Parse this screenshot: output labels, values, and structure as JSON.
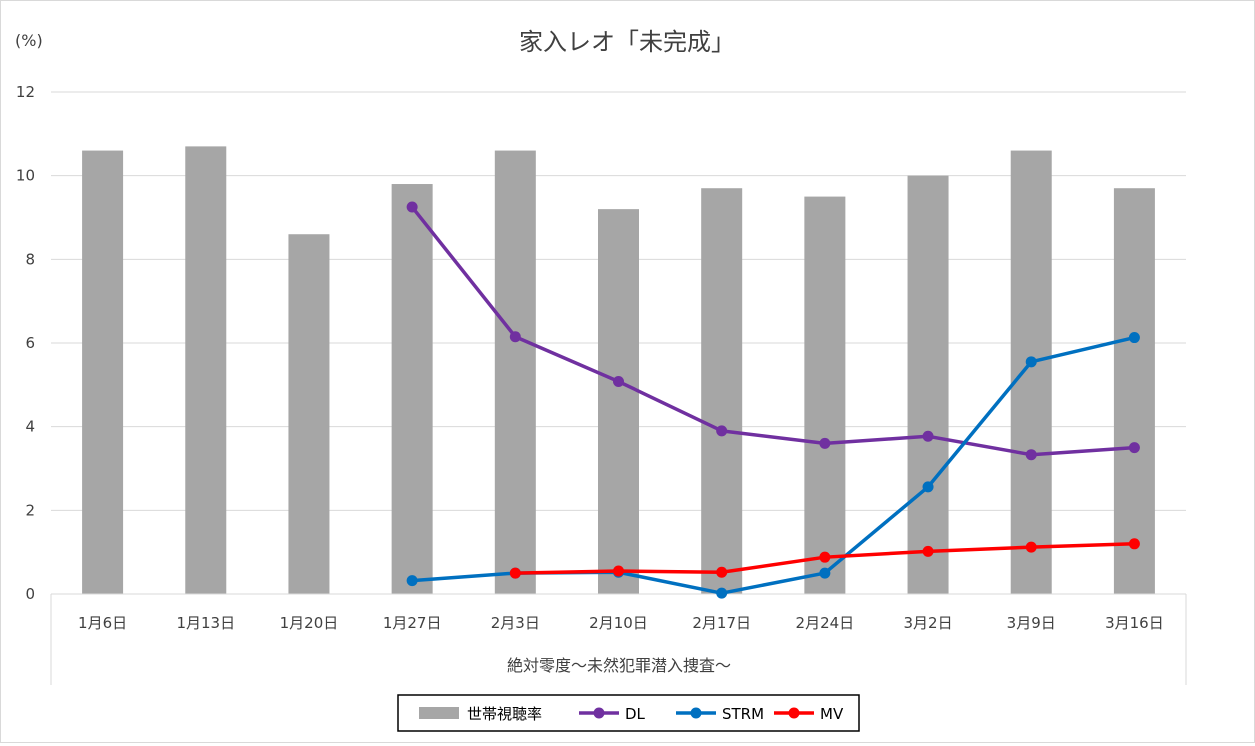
{
  "chart_data": {
    "type": "bar+line",
    "title": "家入レオ「未完成」",
    "y_unit_label": "(%)",
    "group_label": "絶対零度〜未然犯罪潜入捜査〜",
    "categories": [
      "1月6日",
      "1月13日",
      "1月20日",
      "1月27日",
      "2月3日",
      "2月10日",
      "2月17日",
      "2月24日",
      "3月2日",
      "3月9日",
      "3月16日"
    ],
    "ylim": [
      0,
      12
    ],
    "yticks": [
      0,
      2,
      4,
      6,
      8,
      10,
      12
    ],
    "grid": true,
    "legend_position": "bottom",
    "bars": {
      "name": "世帯視聴率",
      "color": "#a6a6a6",
      "values": [
        10.6,
        10.7,
        8.6,
        9.8,
        10.6,
        9.2,
        9.7,
        9.5,
        10.0,
        10.6,
        9.7
      ]
    },
    "series": [
      {
        "name": "DL",
        "color": "#7030a0",
        "values": [
          null,
          null,
          null,
          9.25,
          6.15,
          5.08,
          3.9,
          3.6,
          3.77,
          3.33,
          3.5
        ]
      },
      {
        "name": "STRM",
        "color": "#0070c0",
        "values": [
          null,
          null,
          null,
          0.32,
          0.5,
          0.52,
          0.02,
          0.5,
          2.56,
          5.55,
          6.13
        ]
      },
      {
        "name": "MV",
        "color": "#ff0000",
        "values": [
          null,
          null,
          null,
          null,
          0.5,
          0.55,
          0.52,
          0.88,
          1.02,
          1.12,
          1.2
        ]
      }
    ]
  }
}
